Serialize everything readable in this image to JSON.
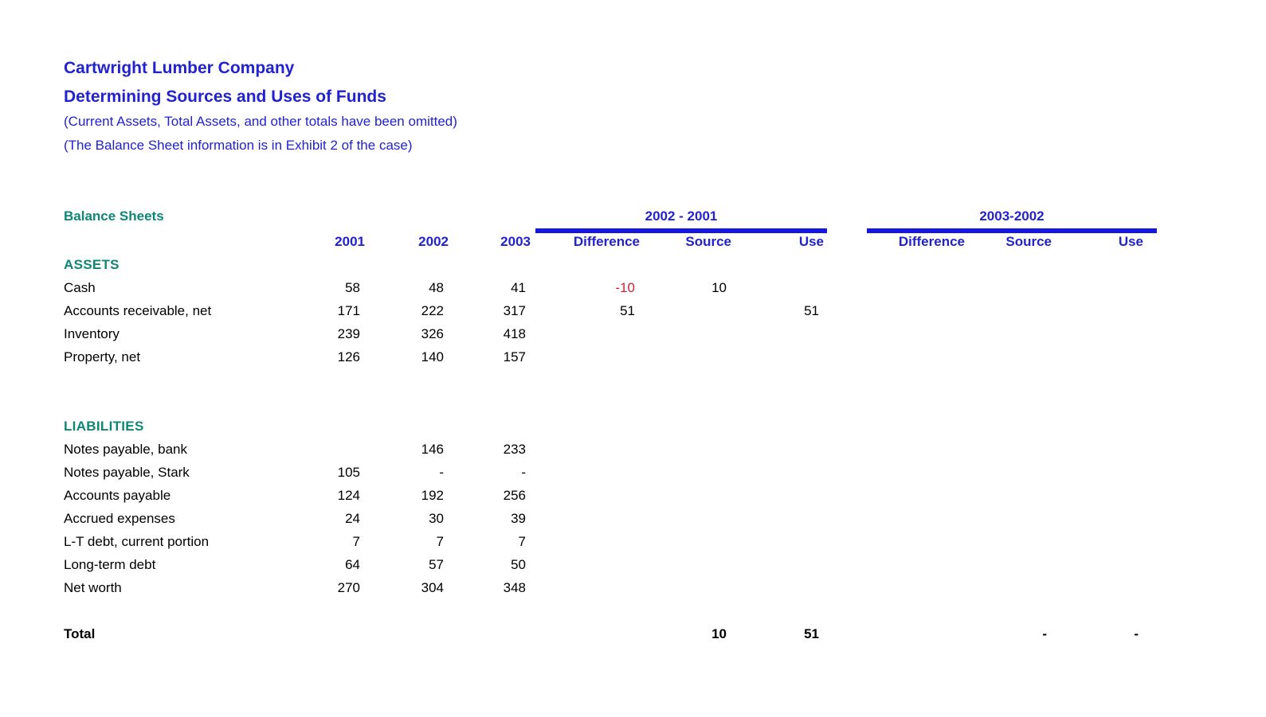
{
  "colors": {
    "accent_blue": "#2222CF",
    "bar_blue": "#1616E2",
    "section_teal": "#0E8775",
    "negative_red": "#CF2233"
  },
  "header": {
    "company": "Cartwright Lumber Company",
    "title": "Determining Sources and Uses of Funds",
    "note1": "(Current Assets, Total Assets, and other totals have been omitted)",
    "note2": "(The Balance Sheet information is in Exhibit 2 of the case)"
  },
  "sheet": {
    "label": "Balance Sheets",
    "group_headers": [
      {
        "label": "2002 - 2001"
      },
      {
        "label": "2003-2002"
      }
    ],
    "columns": [
      "2001",
      "2002",
      "2003",
      "Difference",
      "Source",
      "Use",
      "Difference",
      "Source",
      "Use"
    ],
    "rows": [
      {
        "type": "section",
        "label": "ASSETS",
        "values": [
          "",
          "",
          "",
          "",
          "",
          "",
          "",
          "",
          ""
        ]
      },
      {
        "type": "data",
        "label": "Cash",
        "values": [
          "58",
          "48",
          "41",
          "-10",
          "10",
          "",
          "",
          "",
          ""
        ]
      },
      {
        "type": "data",
        "label": "Accounts receivable, net",
        "values": [
          "171",
          "222",
          "317",
          "51",
          "",
          "51",
          "",
          "",
          ""
        ]
      },
      {
        "type": "data",
        "label": "Inventory",
        "values": [
          "239",
          "326",
          "418",
          "",
          "",
          "",
          "",
          "",
          ""
        ]
      },
      {
        "type": "data",
        "label": "Property, net",
        "values": [
          "126",
          "140",
          "157",
          "",
          "",
          "",
          "",
          "",
          ""
        ]
      },
      {
        "type": "blank",
        "label": "",
        "values": [
          "",
          "",
          "",
          "",
          "",
          "",
          "",
          "",
          ""
        ]
      },
      {
        "type": "blank",
        "label": "",
        "values": [
          "",
          "",
          "",
          "",
          "",
          "",
          "",
          "",
          ""
        ]
      },
      {
        "type": "section",
        "label": "LIABILITIES",
        "values": [
          "",
          "",
          "",
          "",
          "",
          "",
          "",
          "",
          ""
        ]
      },
      {
        "type": "data",
        "label": "Notes payable, bank",
        "values": [
          "",
          "146",
          "233",
          "",
          "",
          "",
          "",
          "",
          ""
        ]
      },
      {
        "type": "data",
        "label": "Notes payable, Stark",
        "values": [
          "105",
          "-",
          "-",
          "",
          "",
          "",
          "",
          "",
          ""
        ]
      },
      {
        "type": "data",
        "label": "Accounts payable",
        "values": [
          "124",
          "192",
          "256",
          "",
          "",
          "",
          "",
          "",
          ""
        ]
      },
      {
        "type": "data",
        "label": "Accrued expenses",
        "values": [
          "24",
          "30",
          "39",
          "",
          "",
          "",
          "",
          "",
          ""
        ]
      },
      {
        "type": "data",
        "label": "L-T debt, current portion",
        "values": [
          "7",
          "7",
          "7",
          "",
          "",
          "",
          "",
          "",
          ""
        ]
      },
      {
        "type": "data",
        "label": "Long-term debt",
        "values": [
          "64",
          "57",
          "50",
          "",
          "",
          "",
          "",
          "",
          ""
        ]
      },
      {
        "type": "data",
        "label": "Net worth",
        "values": [
          "270",
          "304",
          "348",
          "",
          "",
          "",
          "",
          "",
          ""
        ]
      },
      {
        "type": "blank",
        "label": "",
        "values": [
          "",
          "",
          "",
          "",
          "",
          "",
          "",
          "",
          ""
        ]
      },
      {
        "type": "total",
        "label": "Total",
        "values": [
          "",
          "",
          "",
          "",
          "10",
          "51",
          "",
          "-",
          "-"
        ]
      }
    ]
  }
}
